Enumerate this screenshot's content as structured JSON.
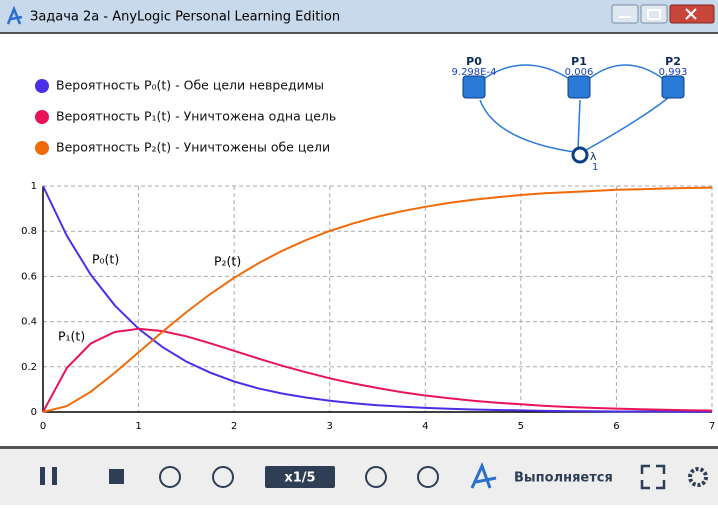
{
  "window": {
    "title": "Задача 2a - AnyLogic Personal Learning Edition"
  },
  "legend": [
    "Вероятность P₀(t) - Обе цели невредимы",
    "Вероятность P₁(t) - Уничтожена одна цель",
    "Вероятность P₂(t) - Уничтожены обе цели"
  ],
  "diagram": {
    "nodes": [
      {
        "label": "P0",
        "value": "9.298E-4"
      },
      {
        "label": "P1",
        "value": "0.006"
      },
      {
        "label": "P2",
        "value": "0.993"
      }
    ],
    "event": {
      "label": "λ",
      "value": "1"
    }
  },
  "chart_data": {
    "type": "line",
    "x": [
      0,
      0.25,
      0.5,
      0.75,
      1,
      1.25,
      1.5,
      1.75,
      2,
      2.25,
      2.5,
      2.75,
      3,
      3.25,
      3.5,
      3.75,
      4,
      4.25,
      4.5,
      4.75,
      5,
      5.25,
      5.5,
      5.75,
      6,
      6.25,
      6.5,
      6.75,
      7
    ],
    "series": [
      {
        "name": "P₀(t)",
        "color": "#4b2fe6",
        "values": [
          1,
          0.779,
          0.607,
          0.472,
          0.368,
          0.287,
          0.223,
          0.174,
          0.135,
          0.105,
          0.082,
          0.064,
          0.05,
          0.039,
          0.03,
          0.024,
          0.018,
          0.014,
          0.011,
          0.009,
          0.007,
          0.005,
          0.004,
          0.003,
          0.002,
          0.002,
          0.002,
          0.001,
          0.001
        ]
      },
      {
        "name": "P₁(t)",
        "color": "#e8145a",
        "values": [
          0,
          0.195,
          0.303,
          0.354,
          0.368,
          0.358,
          0.335,
          0.304,
          0.271,
          0.237,
          0.205,
          0.176,
          0.149,
          0.126,
          0.106,
          0.088,
          0.073,
          0.061,
          0.05,
          0.041,
          0.034,
          0.027,
          0.022,
          0.018,
          0.015,
          0.012,
          0.01,
          0.008,
          0.006
        ]
      },
      {
        "name": "P₂(t)",
        "color": "#f06a0a",
        "values": [
          0,
          0.026,
          0.09,
          0.173,
          0.264,
          0.355,
          0.442,
          0.522,
          0.594,
          0.657,
          0.713,
          0.76,
          0.801,
          0.835,
          0.864,
          0.888,
          0.908,
          0.925,
          0.939,
          0.95,
          0.96,
          0.968,
          0.973,
          0.978,
          0.983,
          0.986,
          0.989,
          0.991,
          0.993
        ]
      }
    ],
    "xlim": [
      0,
      7
    ],
    "xticks": [
      0,
      1,
      2,
      3,
      4,
      5,
      6,
      7
    ],
    "ylim": [
      0,
      1
    ],
    "yticks": [
      0,
      0.2,
      0.4,
      0.6,
      0.8,
      1
    ],
    "grid": true
  },
  "toolbar": {
    "speed": "x1/5",
    "status": "Выполняется"
  }
}
